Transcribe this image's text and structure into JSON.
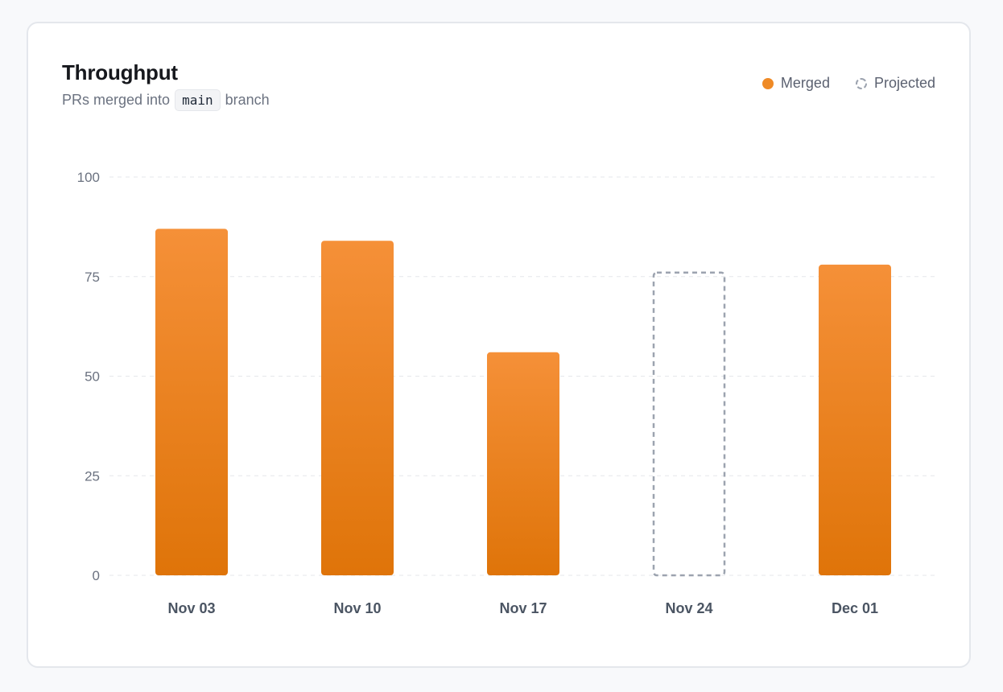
{
  "header": {
    "title": "Throughput",
    "subtitle_prefix": "PRs merged into",
    "subtitle_code": "main",
    "subtitle_suffix": "branch"
  },
  "legend": {
    "merged_label": "Merged",
    "projected_label": "Projected"
  },
  "colors": {
    "bar_top": "#f59038",
    "bar_bottom": "#df7409",
    "projected_stroke": "#9ca3af",
    "grid": "#e5e7eb"
  },
  "chart_data": {
    "type": "bar",
    "title": "Throughput",
    "subtitle": "PRs merged into main branch",
    "categories": [
      "Nov 03",
      "Nov 10",
      "Nov 17",
      "Nov 24",
      "Dec 01"
    ],
    "series": [
      {
        "name": "Merged",
        "values": [
          87,
          84,
          56,
          null,
          78
        ]
      },
      {
        "name": "Projected",
        "values": [
          null,
          null,
          null,
          76,
          null
        ]
      }
    ],
    "yticks": [
      0,
      25,
      50,
      75,
      100
    ],
    "ylim": [
      0,
      100
    ],
    "xlabel": "",
    "ylabel": "",
    "grid": true,
    "legend_position": "top-right"
  }
}
